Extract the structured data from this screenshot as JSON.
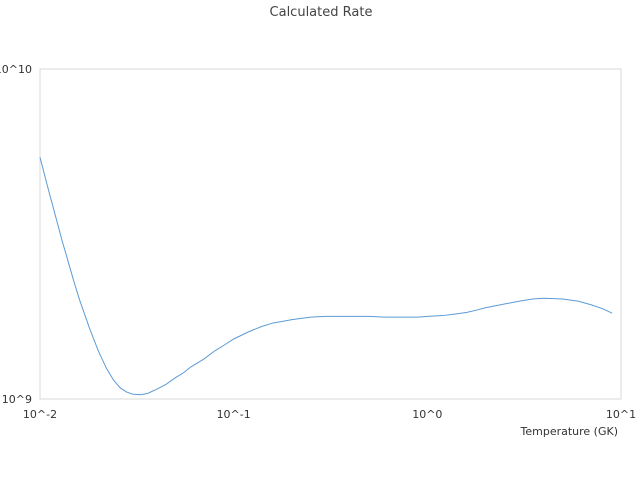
{
  "chart_data": {
    "type": "line",
    "title": "Calculated Rate",
    "xlabel": "Temperature (GK)",
    "ylabel": "",
    "x_scale": "log",
    "y_scale": "log",
    "xlim": [
      0.01,
      10
    ],
    "ylim": [
      1000000000,
      10000000000
    ],
    "x_tick_labels": [
      "10^-2",
      "10^-1",
      "10^0",
      "10^1"
    ],
    "y_tick_labels": [
      "10^9",
      "10^10"
    ],
    "grid": false,
    "legend": "none",
    "series": [
      {
        "color": "#5B9BD5",
        "x": [
          0.01,
          0.011,
          0.012,
          0.013,
          0.014,
          0.015,
          0.016,
          0.018,
          0.02,
          0.022,
          0.024,
          0.026,
          0.028,
          0.03,
          0.033,
          0.036,
          0.04,
          0.045,
          0.05,
          0.055,
          0.06,
          0.07,
          0.08,
          0.09,
          0.1,
          0.12,
          0.14,
          0.16,
          0.18,
          0.2,
          0.25,
          0.3,
          0.35,
          0.4,
          0.5,
          0.6,
          0.7,
          0.8,
          0.9,
          1.0,
          1.2,
          1.4,
          1.6,
          1.8,
          2.0,
          2.5,
          3.0,
          3.5,
          4.0,
          5.0,
          6.0,
          7.0,
          8.0,
          9.0
        ],
        "y": [
          5400000000.0,
          4350000000.0,
          3600000000.0,
          3020000000.0,
          2600000000.0,
          2260000000.0,
          2000000000.0,
          1640000000.0,
          1400000000.0,
          1240000000.0,
          1140000000.0,
          1080000000.0,
          1050000000.0,
          1035000000.0,
          1030000000.0,
          1040000000.0,
          1070000000.0,
          1110000000.0,
          1160000000.0,
          1200000000.0,
          1250000000.0,
          1320000000.0,
          1400000000.0,
          1460000000.0,
          1520000000.0,
          1600000000.0,
          1660000000.0,
          1700000000.0,
          1720000000.0,
          1740000000.0,
          1770000000.0,
          1780000000.0,
          1780000000.0,
          1780000000.0,
          1780000000.0,
          1770000000.0,
          1770000000.0,
          1770000000.0,
          1770000000.0,
          1780000000.0,
          1790000000.0,
          1810000000.0,
          1830000000.0,
          1860000000.0,
          1890000000.0,
          1940000000.0,
          1980000000.0,
          2010000000.0,
          2020000000.0,
          2010000000.0,
          1980000000.0,
          1930000000.0,
          1880000000.0,
          1820000000.0
        ]
      }
    ]
  }
}
